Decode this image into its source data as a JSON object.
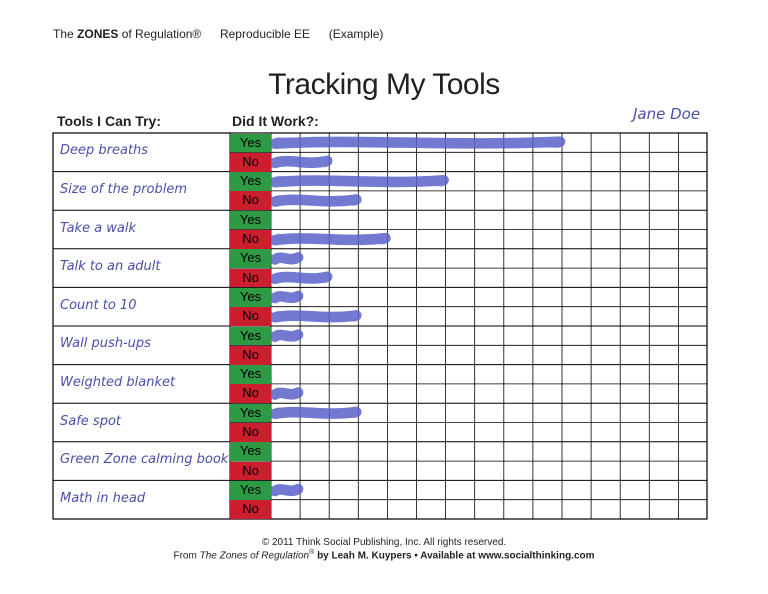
{
  "header": {
    "prefix": "The",
    "brand": "ZONES",
    "suffix": "of Regulation®",
    "doc_code": "Reproducible EE",
    "example": "(Example)"
  },
  "title": "Tracking My Tools",
  "columns": {
    "tools": "Tools I Can Try:",
    "result": "Did It Work?:"
  },
  "student_name": "Jane Doe",
  "yes_label": "Yes",
  "no_label": "No",
  "marker_color": "#5b63c9",
  "tools": [
    {
      "name": "Deep breaths",
      "yes_marks": 10,
      "no_marks": 2
    },
    {
      "name": "Size of the problem",
      "yes_marks": 6,
      "no_marks": 3
    },
    {
      "name": "Take a walk",
      "yes_marks": 0,
      "no_marks": 4
    },
    {
      "name": "Talk to an adult",
      "yes_marks": 1,
      "no_marks": 2
    },
    {
      "name": "Count to 10",
      "yes_marks": 1,
      "no_marks": 3
    },
    {
      "name": "Wall push-ups",
      "yes_marks": 1,
      "no_marks": 0
    },
    {
      "name": "Weighted blanket",
      "yes_marks": 0,
      "no_marks": 1
    },
    {
      "name": "Safe spot",
      "yes_marks": 3,
      "no_marks": 0
    },
    {
      "name": "Green Zone calming book",
      "yes_marks": 0,
      "no_marks": 0
    },
    {
      "name": "Math in head",
      "yes_marks": 1,
      "no_marks": 0
    }
  ],
  "footer": {
    "copyright": "© 2011 Think Social Publishing, Inc. All rights reserved.",
    "from": "From",
    "book": "The Zones of Regulation",
    "reg": "®",
    "rest": "by Leah M. Kuypers • Available at www.socialthinking.com"
  }
}
